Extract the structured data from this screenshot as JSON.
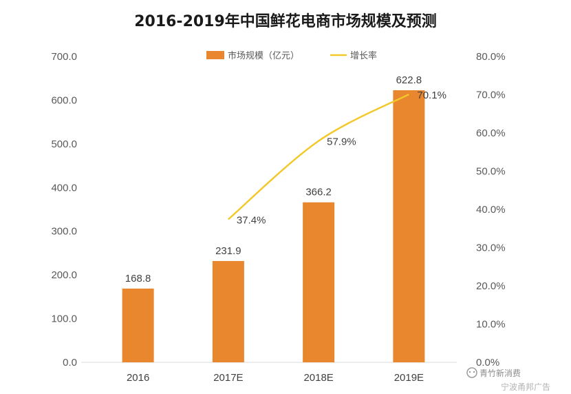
{
  "chart_data": {
    "type": "bar",
    "title": "2016-2019年中国鲜花电商市场规模及预测",
    "categories": [
      "2016",
      "2017E",
      "2018E",
      "2019E"
    ],
    "series": [
      {
        "name": "市场规模（亿元）",
        "type": "bar",
        "axis": "left",
        "values": [
          168.8,
          231.9,
          366.2,
          622.8
        ],
        "labels": [
          "168.8",
          "231.9",
          "366.2",
          "622.8"
        ],
        "color": "#e8872e"
      },
      {
        "name": "增长率",
        "type": "line",
        "axis": "right",
        "values": [
          null,
          37.4,
          57.9,
          70.1
        ],
        "labels": [
          "",
          "37.4%",
          "57.9%",
          "70.1%"
        ],
        "color": "#f2c82a"
      }
    ],
    "y_left": {
      "min": 0,
      "max": 700,
      "ticks": [
        "0.0",
        "100.0",
        "200.0",
        "300.0",
        "400.0",
        "500.0",
        "600.0",
        "700.0"
      ]
    },
    "y_right": {
      "min": 0,
      "max": 80,
      "ticks": [
        "0.0%",
        "10.0%",
        "20.0%",
        "30.0%",
        "40.0%",
        "50.0%",
        "60.0%",
        "70.0%",
        "80.0%"
      ]
    },
    "grid": false,
    "legend_position": "top-center"
  },
  "watermark": {
    "brand": "青竹新消费",
    "source": "宁波甬邦广告"
  }
}
